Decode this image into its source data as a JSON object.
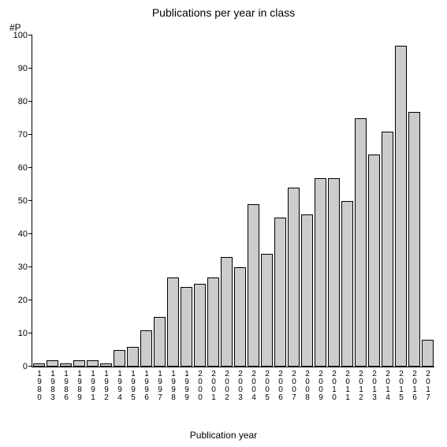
{
  "chart": {
    "type": "bar",
    "title": "Publications per year in class",
    "title_fontsize": 14,
    "ylabel": "#P",
    "xlabel": "Publication year",
    "label_fontsize": 12,
    "tick_fontsize": 11,
    "xtick_fontsize": 10,
    "background_color": "#ffffff",
    "bar_fill": "#cccccc",
    "bar_border": "#000000",
    "axis_color": "#000000",
    "text_color": "#000000",
    "ylim": [
      0,
      100
    ],
    "ytick_step": 10,
    "yticks": [
      0,
      10,
      20,
      30,
      40,
      50,
      60,
      70,
      80,
      90,
      100
    ],
    "bar_width": 0.92,
    "categories": [
      "1980",
      "1983",
      "1986",
      "1989",
      "1991",
      "1992",
      "1994",
      "1995",
      "1996",
      "1997",
      "1998",
      "1999",
      "2000",
      "2001",
      "2002",
      "2003",
      "2004",
      "2005",
      "2006",
      "2007",
      "2008",
      "2009",
      "2010",
      "2011",
      "2012",
      "2013",
      "2014",
      "2015",
      "2016",
      "2017"
    ],
    "values": [
      1,
      2,
      1,
      2,
      2,
      1,
      5,
      6,
      11,
      15,
      27,
      24,
      25,
      27,
      33,
      30,
      49,
      34,
      45,
      54,
      46,
      57,
      57,
      50,
      75,
      64,
      71,
      97,
      77,
      8
    ]
  }
}
